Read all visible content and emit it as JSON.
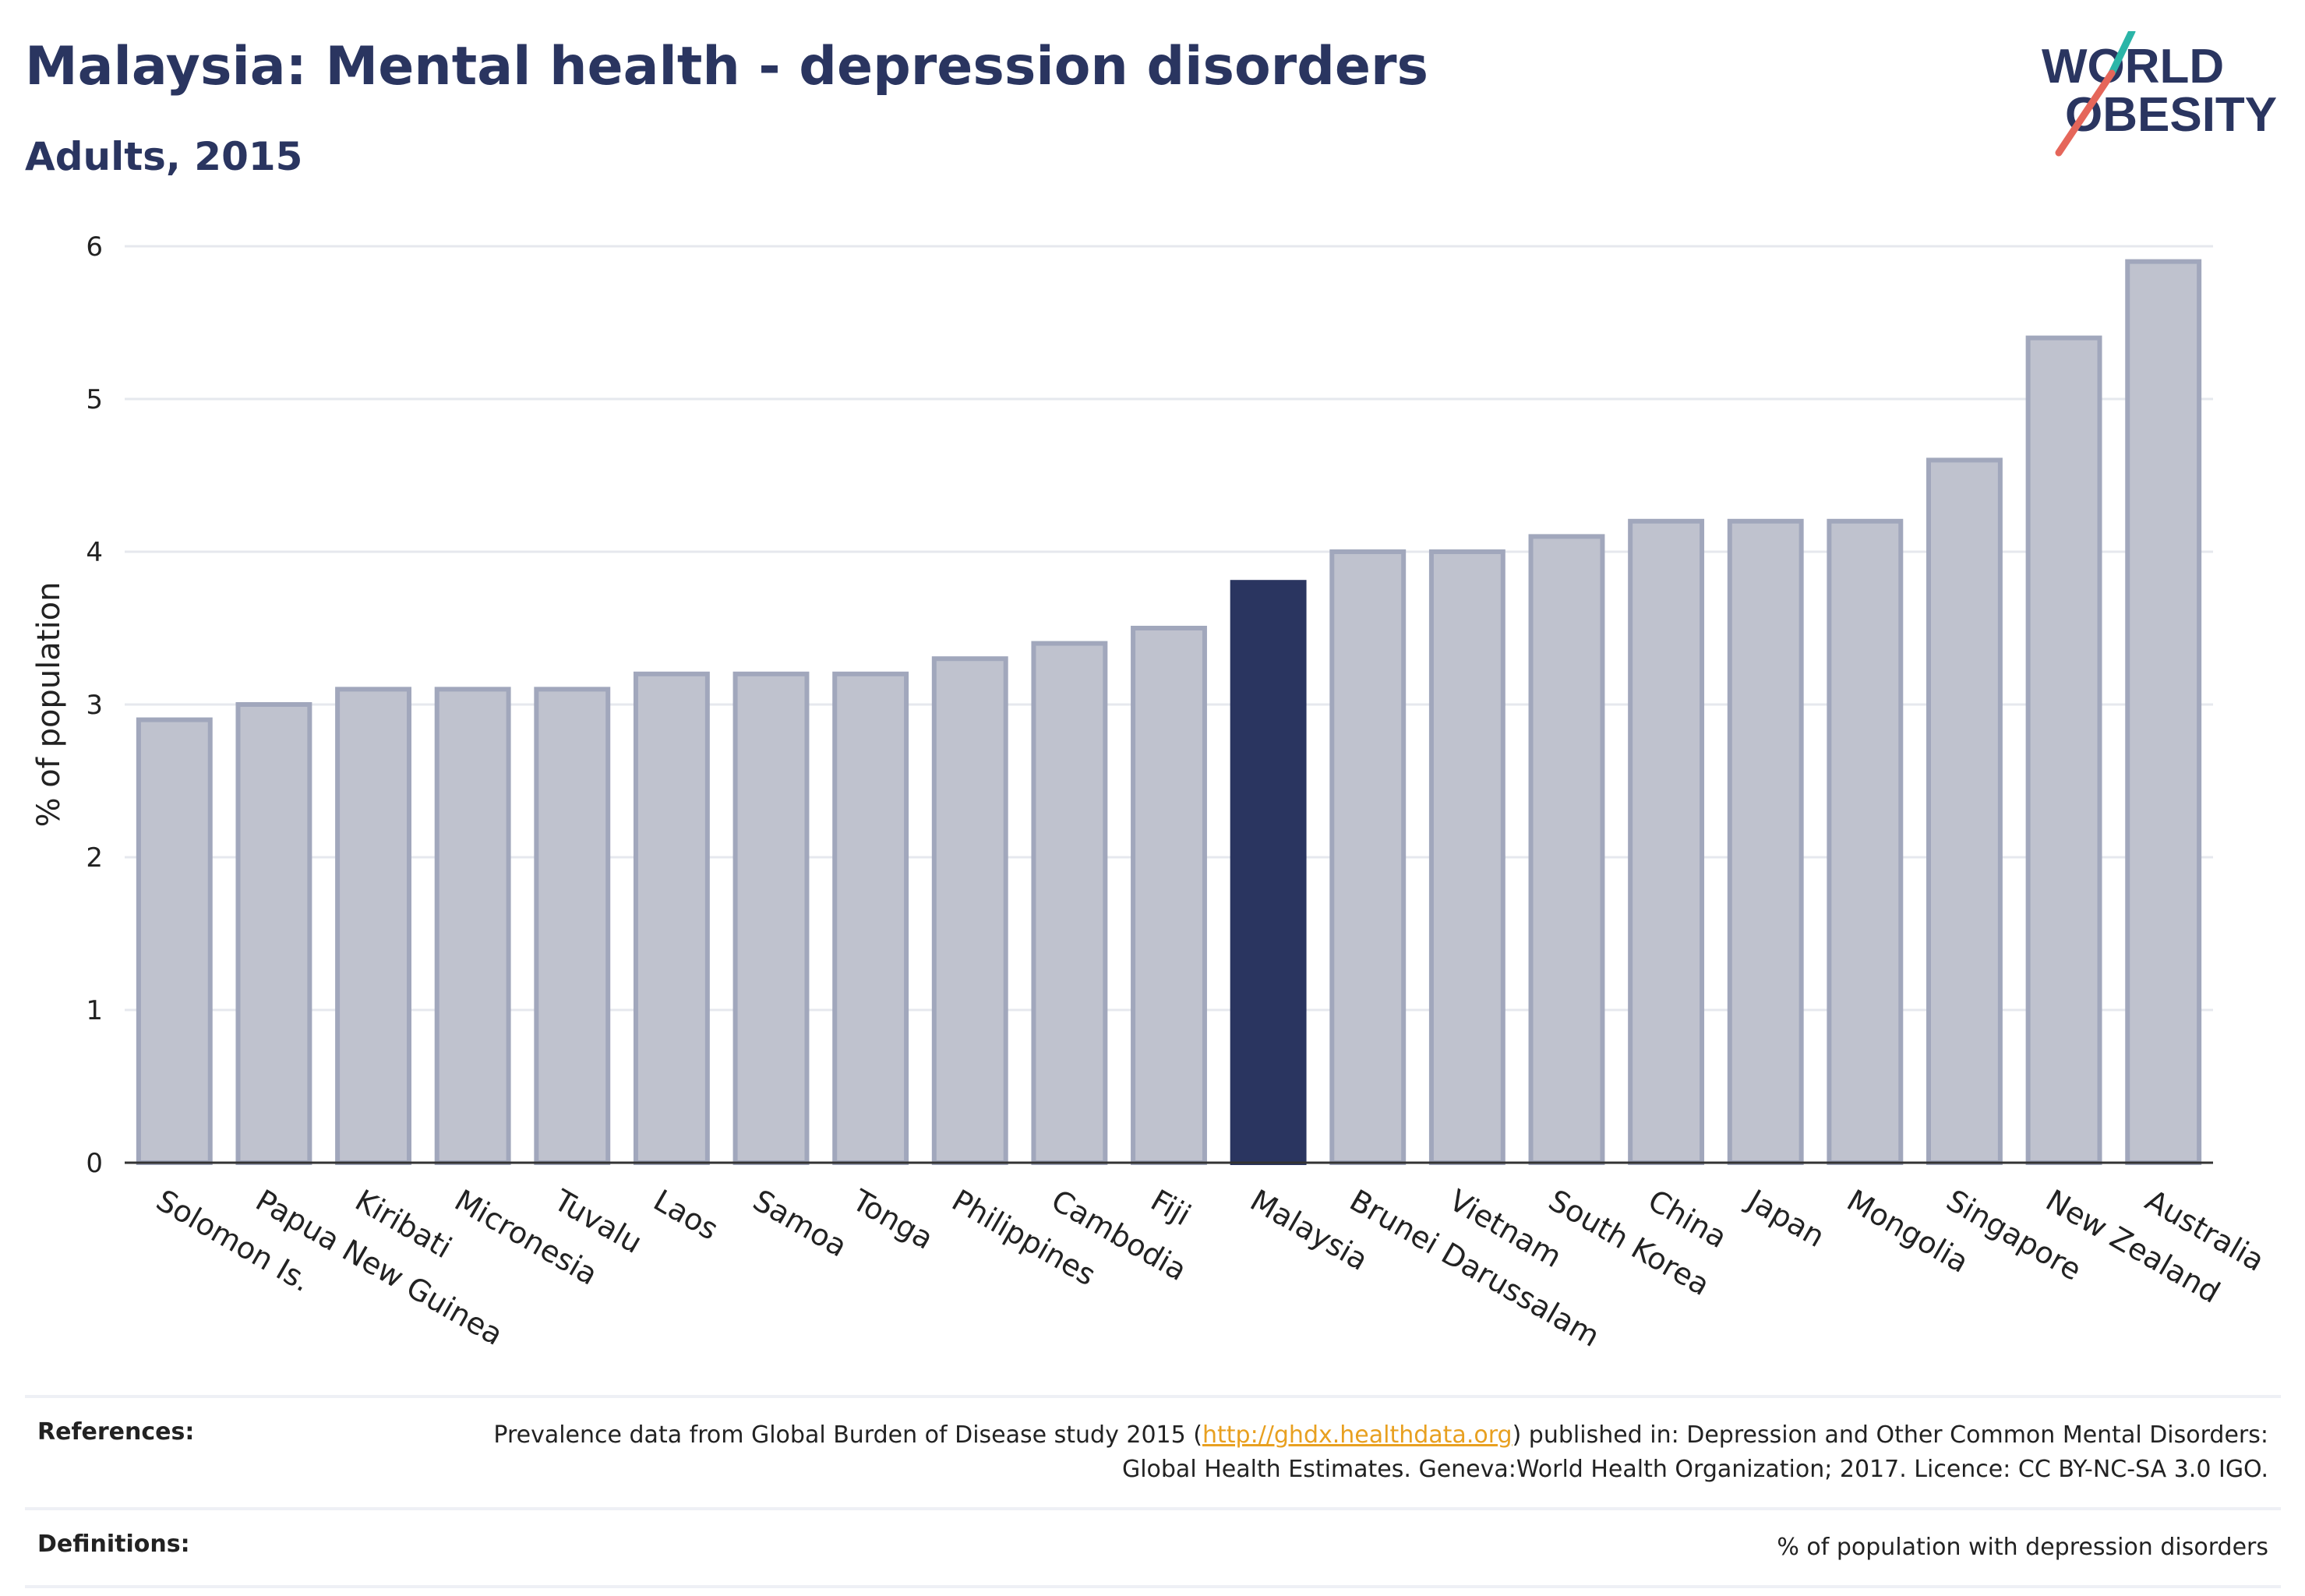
{
  "header": {
    "title": "Malaysia: Mental health - depression disorders",
    "subtitle": "Adults, 2015"
  },
  "logo": {
    "line1": "WORLD",
    "line2": "OBESITY"
  },
  "chart_data": {
    "type": "bar",
    "ylabel": "% of population",
    "ylim": [
      0,
      6
    ],
    "yticks": [
      0,
      1,
      2,
      3,
      4,
      5,
      6
    ],
    "grid": true,
    "categories": [
      "Solomon Is.",
      "Papua New Guinea",
      "Kiribati",
      "Micronesia",
      "Tuvalu",
      "Laos",
      "Samoa",
      "Tonga",
      "Philippines",
      "Cambodia",
      "Fiji",
      "Malaysia",
      "Brunei Darussalam",
      "Vietnam",
      "South Korea",
      "China",
      "Japan",
      "Mongolia",
      "Singapore",
      "New Zealand",
      "Australia"
    ],
    "values": [
      2.9,
      3.0,
      3.1,
      3.1,
      3.1,
      3.2,
      3.2,
      3.2,
      3.3,
      3.4,
      3.5,
      3.8,
      4.0,
      4.0,
      4.1,
      4.2,
      4.2,
      4.2,
      4.6,
      5.4,
      5.9
    ],
    "highlight": "Malaysia",
    "colors": {
      "bar": "#bfc2ce",
      "bar_border": "#a1a7bc",
      "highlight": "#2a3560",
      "grid": "#e6e8ee",
      "axis": "#333333"
    }
  },
  "references": {
    "label": "References:",
    "text_before": "Prevalence data from Global Burden of Disease study 2015 (",
    "link": "http://ghdx.healthdata.org",
    "text_after": ") published in: Depression and Other Common Mental Disorders: Global Health Estimates. Geneva:World Health Organization; 2017. Licence: CC BY-NC-SA 3.0 IGO."
  },
  "definitions": {
    "label": "Definitions:",
    "text": "% of population with depression disorders"
  }
}
